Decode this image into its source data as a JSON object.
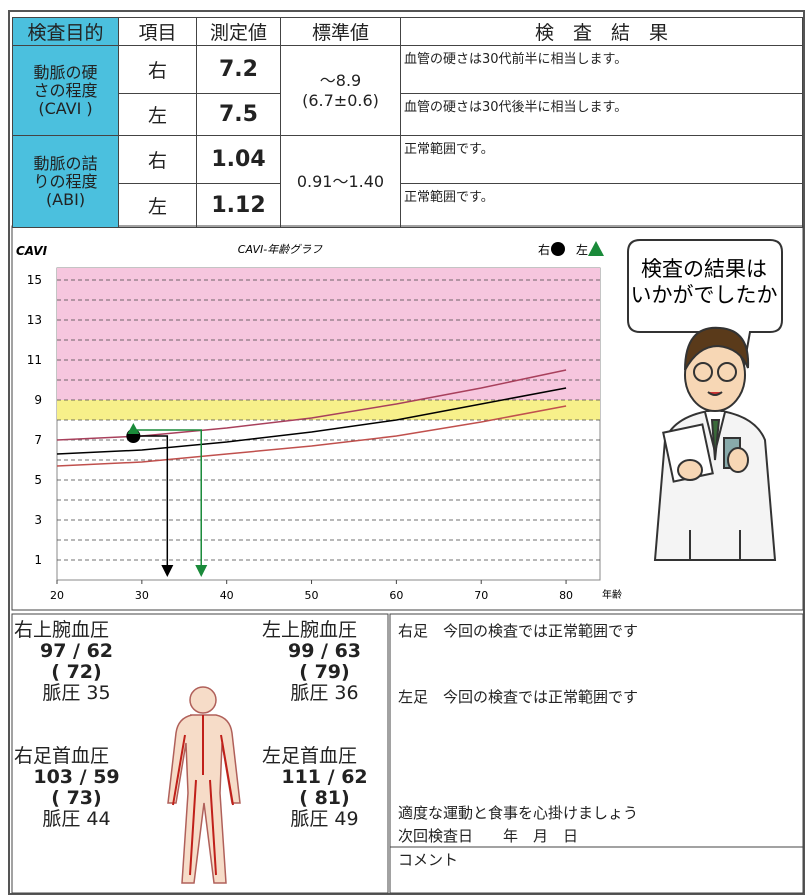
{
  "table": {
    "header": [
      "検査目的",
      "項目",
      "測定値",
      "標準値",
      "検　査　結　果"
    ],
    "groups": [
      {
        "purpose": [
          "動脈の硬",
          "さの程度",
          "(CAVI )"
        ],
        "standard": [
          "～8.9",
          "(6.7±0.6)"
        ],
        "rows": [
          {
            "side": "右",
            "value": 7.2,
            "result": "血管の硬さは30代前半に相当します。"
          },
          {
            "side": "左",
            "value": 7.5,
            "result": "血管の硬さは30代後半に相当します。"
          }
        ]
      },
      {
        "purpose": [
          "動脈の詰",
          "りの程度",
          "(ABI)"
        ],
        "standard": [
          "0.91～1.40"
        ],
        "rows": [
          {
            "side": "右",
            "value": 1.04,
            "result": "正常範囲です。"
          },
          {
            "side": "左",
            "value": 1.12,
            "result": "正常範囲です。"
          }
        ]
      }
    ]
  },
  "chart_data": {
    "type": "line",
    "title": "CAVI-年齢グラフ",
    "y_label": "CAVI",
    "x_label": "年齢",
    "xlim": [
      20,
      84
    ],
    "ylim": [
      0,
      15.6
    ],
    "xticks": [
      20,
      30,
      40,
      50,
      60,
      70,
      80
    ],
    "yticks": [
      1,
      3,
      5,
      7,
      9,
      11,
      13,
      15
    ],
    "minor_yticks": [
      2,
      4,
      6,
      8,
      10,
      12,
      14
    ],
    "grid": true,
    "zones": [
      {
        "from": 9,
        "to": 15.6,
        "color": "#f6c6de"
      },
      {
        "from": 8,
        "to": 9,
        "color": "#f7f08a"
      }
    ],
    "reference_curves": [
      {
        "color": "#a8405c",
        "x": [
          20,
          30,
          40,
          50,
          60,
          70,
          80
        ],
        "values": [
          7.0,
          7.2,
          7.6,
          8.1,
          8.8,
          9.6,
          10.5
        ]
      },
      {
        "color": "#000000",
        "x": [
          20,
          30,
          40,
          50,
          60,
          70,
          80
        ],
        "values": [
          6.3,
          6.5,
          6.9,
          7.4,
          8.0,
          8.8,
          9.6
        ]
      },
      {
        "color": "#c0504d",
        "x": [
          20,
          30,
          40,
          50,
          60,
          70,
          80
        ],
        "values": [
          5.7,
          5.9,
          6.3,
          6.7,
          7.2,
          7.9,
          8.7
        ]
      }
    ],
    "series": [
      {
        "name": "右",
        "color": "#000000",
        "marker": "circle",
        "x": [
          29
        ],
        "values": [
          7.2
        ],
        "vascular_age": 33
      },
      {
        "name": "左",
        "color": "#1a8a3a",
        "marker": "triangle",
        "x": [
          29
        ],
        "values": [
          7.5
        ],
        "vascular_age": 37
      }
    ]
  },
  "bubble": [
    "検査の結果は",
    "いかがでしたか"
  ],
  "blood_pressure": [
    {
      "label": "右上腕血圧",
      "pressure": "97 / 62",
      "mean": "( 72)",
      "pulse": "脈圧 35"
    },
    {
      "label": "左上腕血圧",
      "pressure": "99 / 63",
      "mean": "( 79)",
      "pulse": "脈圧 36"
    },
    {
      "label": "右足首血圧",
      "pressure": "103 / 59",
      "mean": "( 73)",
      "pulse": "脈圧 44"
    },
    {
      "label": "左足首血圧",
      "pressure": "111 / 62",
      "mean": "( 81)",
      "pulse": "脈圧 49"
    }
  ],
  "findings": {
    "right_leg": "右足　今回の検査では正常範囲です",
    "left_leg": "左足　今回の検査では正常範囲です",
    "advice": "適度な運動と食事を心掛けましょう",
    "next_exam": "次回検査日　　年　月　日",
    "comment": "コメント"
  }
}
